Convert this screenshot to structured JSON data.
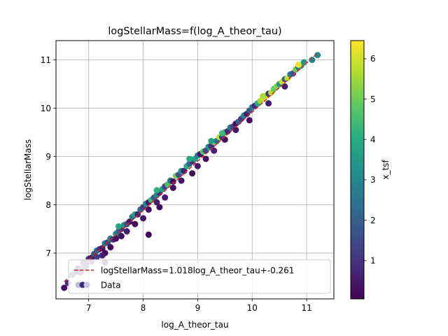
{
  "chart_data": {
    "type": "scatter",
    "title": "logStellarMass=f(log_A_theor_tau)",
    "xlabel": "log_A_theor_tau",
    "ylabel": "logStellarMass",
    "xlim": [
      6.4,
      11.5
    ],
    "ylim": [
      6.05,
      11.4
    ],
    "x_ticks": [
      7,
      8,
      9,
      10,
      11
    ],
    "y_ticks": [
      7,
      8,
      9,
      10,
      11
    ],
    "grid": true,
    "legend_position": "lower left",
    "colormap": "viridis",
    "colorbar": {
      "label": "x_tsf",
      "range": [
        0.05,
        6.45
      ],
      "ticks": [
        1,
        2,
        3,
        4,
        5,
        6
      ]
    },
    "fit_line": {
      "label": "logStellarMass=1.018log_A_theor_tau+-0.261",
      "slope": 1.018,
      "intercept": -0.261,
      "x_range": [
        6.55,
        11.2
      ],
      "color": "#d62728",
      "style": "dashed"
    },
    "scatter": {
      "label": "Data",
      "points": [
        [
          6.55,
          6.28,
          0.3
        ],
        [
          6.62,
          6.38,
          0.8
        ],
        [
          6.7,
          6.55,
          1.2
        ],
        [
          6.78,
          6.62,
          1.0
        ],
        [
          6.85,
          6.68,
          1.6
        ],
        [
          6.9,
          6.8,
          1.5
        ],
        [
          6.95,
          6.78,
          0.6
        ],
        [
          7.0,
          6.88,
          1.3
        ],
        [
          7.05,
          6.9,
          0.4
        ],
        [
          7.1,
          6.98,
          1.8
        ],
        [
          7.15,
          7.05,
          2.2
        ],
        [
          7.2,
          7.08,
          1.1
        ],
        [
          7.25,
          7.1,
          0.5
        ],
        [
          7.3,
          7.2,
          2.5
        ],
        [
          7.3,
          7.0,
          0.2
        ],
        [
          7.35,
          7.22,
          1.4
        ],
        [
          7.4,
          7.3,
          2.8
        ],
        [
          7.45,
          7.28,
          0.9
        ],
        [
          7.5,
          7.4,
          3.0
        ],
        [
          7.5,
          7.3,
          0.3
        ],
        [
          7.55,
          7.45,
          2.0
        ],
        [
          7.6,
          7.5,
          1.0
        ],
        [
          7.65,
          7.58,
          3.4
        ],
        [
          7.7,
          7.6,
          1.6
        ],
        [
          7.75,
          7.65,
          0.4
        ],
        [
          7.8,
          7.75,
          2.6
        ],
        [
          7.85,
          7.8,
          3.8
        ],
        [
          7.9,
          7.8,
          0.7
        ],
        [
          7.95,
          7.9,
          2.2
        ],
        [
          8.0,
          7.95,
          1.2
        ],
        [
          8.05,
          8.02,
          3.1
        ],
        [
          8.1,
          8.05,
          0.5
        ],
        [
          8.15,
          8.1,
          4.3
        ],
        [
          8.2,
          8.15,
          1.8
        ],
        [
          8.25,
          8.2,
          2.9
        ],
        [
          8.3,
          8.25,
          0.8
        ],
        [
          8.35,
          8.32,
          3.6
        ],
        [
          8.4,
          8.38,
          1.3
        ],
        [
          8.45,
          8.42,
          4.6
        ],
        [
          8.5,
          8.5,
          2.4
        ],
        [
          8.55,
          8.48,
          0.3
        ],
        [
          8.6,
          8.6,
          5.1
        ],
        [
          8.65,
          8.62,
          1.7
        ],
        [
          8.7,
          8.7,
          3.3
        ],
        [
          8.75,
          8.7,
          0.6
        ],
        [
          8.8,
          8.8,
          4.0
        ],
        [
          8.85,
          8.85,
          2.1
        ],
        [
          8.9,
          8.9,
          1.0
        ],
        [
          8.95,
          8.95,
          3.7
        ],
        [
          9.0,
          9.02,
          2.8
        ],
        [
          9.05,
          9.05,
          0.4
        ],
        [
          9.1,
          9.1,
          4.8
        ],
        [
          9.15,
          9.12,
          1.5
        ],
        [
          9.2,
          9.2,
          3.2
        ],
        [
          9.25,
          9.22,
          0.9
        ],
        [
          9.3,
          9.3,
          5.4
        ],
        [
          9.35,
          9.32,
          2.3
        ],
        [
          9.4,
          9.4,
          5.8
        ],
        [
          9.45,
          9.4,
          1.1
        ],
        [
          9.5,
          9.5,
          3.5
        ],
        [
          9.55,
          9.52,
          0.7
        ],
        [
          9.6,
          9.6,
          2.6
        ],
        [
          9.65,
          9.62,
          1.4
        ],
        [
          9.7,
          9.68,
          0.3
        ],
        [
          9.75,
          9.72,
          2.0
        ],
        [
          9.8,
          9.78,
          1.2
        ],
        [
          9.85,
          9.85,
          3.0
        ],
        [
          9.9,
          9.88,
          0.5
        ],
        [
          9.95,
          9.95,
          1.8
        ],
        [
          10.0,
          10.02,
          2.7
        ],
        [
          10.05,
          10.05,
          0.8
        ],
        [
          10.1,
          10.1,
          3.9
        ],
        [
          10.15,
          10.15,
          5.5
        ],
        [
          10.2,
          10.22,
          6.2
        ],
        [
          10.25,
          10.25,
          6.0
        ],
        [
          10.3,
          10.3,
          1.0
        ],
        [
          10.35,
          10.32,
          5.7
        ],
        [
          10.4,
          10.4,
          4.9
        ],
        [
          10.45,
          10.45,
          5.2
        ],
        [
          10.5,
          10.5,
          3.3
        ],
        [
          10.55,
          10.55,
          6.1
        ],
        [
          10.6,
          10.6,
          2.2
        ],
        [
          10.65,
          10.62,
          5.9
        ],
        [
          10.7,
          10.7,
          2.8
        ],
        [
          10.75,
          10.72,
          1.6
        ],
        [
          10.8,
          10.8,
          5.0
        ],
        [
          10.85,
          10.85,
          2.5
        ],
        [
          10.9,
          10.88,
          4.2
        ],
        [
          11.1,
          11.0,
          3.0
        ],
        [
          11.2,
          11.1,
          3.1
        ],
        [
          7.25,
          6.95,
          0.6
        ],
        [
          7.4,
          7.12,
          0.2
        ],
        [
          7.6,
          7.35,
          0.3
        ],
        [
          7.7,
          7.45,
          0.5
        ],
        [
          7.85,
          7.6,
          0.2
        ],
        [
          8.0,
          7.72,
          0.4
        ],
        [
          8.1,
          7.9,
          0.3
        ],
        [
          8.25,
          8.05,
          0.6
        ],
        [
          8.3,
          7.95,
          0.2
        ],
        [
          8.4,
          8.15,
          0.5
        ],
        [
          8.55,
          8.35,
          0.3
        ],
        [
          8.7,
          8.5,
          0.4
        ],
        [
          8.9,
          8.65,
          0.2
        ],
        [
          9.0,
          8.8,
          0.5
        ],
        [
          9.15,
          8.95,
          0.3
        ],
        [
          9.3,
          9.12,
          0.6
        ],
        [
          9.5,
          9.35,
          0.2
        ],
        [
          9.7,
          9.55,
          0.4
        ],
        [
          9.95,
          9.75,
          0.3
        ],
        [
          10.3,
          10.1,
          0.5
        ],
        [
          10.6,
          10.45,
          0.6
        ],
        [
          8.1,
          7.38,
          0.2
        ],
        [
          7.3,
          6.8,
          0.3
        ],
        [
          6.85,
          6.6,
          0.6
        ],
        [
          6.95,
          6.72,
          1.6
        ],
        [
          7.05,
          6.82,
          0.9
        ],
        [
          7.15,
          6.92,
          1.2
        ],
        [
          6.8,
          6.68,
          0.5
        ],
        [
          7.55,
          7.55,
          3.8
        ],
        [
          8.25,
          8.3,
          4.1
        ],
        [
          8.85,
          8.95,
          3.9
        ],
        [
          9.25,
          9.32,
          3.7
        ],
        [
          9.45,
          9.48,
          4.4
        ],
        [
          10.2,
          10.25,
          5.6
        ],
        [
          10.85,
          10.9,
          6.3
        ],
        [
          10.95,
          10.95,
          3.4
        ]
      ]
    }
  }
}
